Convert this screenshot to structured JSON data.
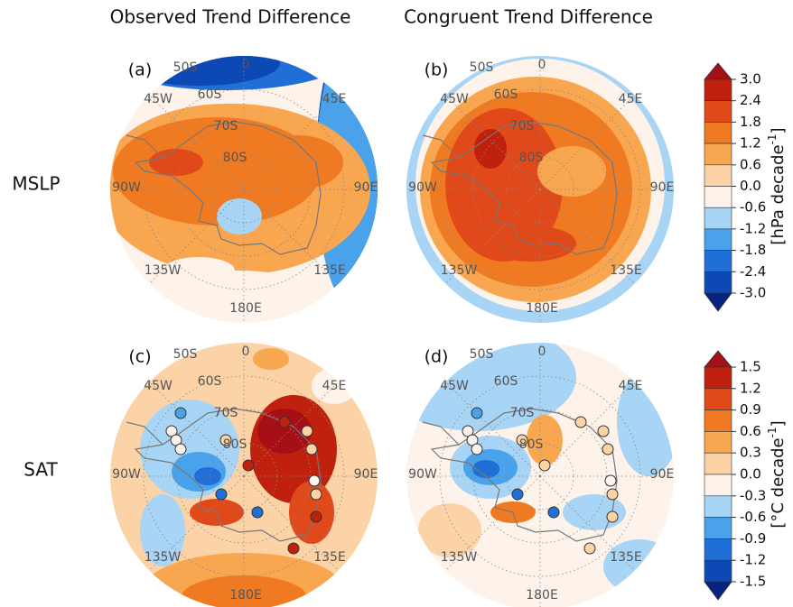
{
  "column_titles": [
    "Observed Trend Difference",
    "Congruent Trend Difference"
  ],
  "row_labels": [
    "MSLP",
    "SAT"
  ],
  "panels": [
    {
      "label": "(a)",
      "grid_labels": [
        "50S",
        "0",
        "45W",
        "60S",
        "45E",
        "70S",
        "80S",
        "90W",
        "90E",
        "135W",
        "135E",
        "180E"
      ]
    },
    {
      "label": "(b)",
      "grid_labels": [
        "50S",
        "0",
        "45W",
        "60S",
        "45E",
        "70S",
        "80S",
        "90W",
        "90E",
        "135W",
        "135E",
        "180E"
      ]
    },
    {
      "label": "(c)",
      "grid_labels": [
        "50S",
        "0",
        "45W",
        "60S",
        "45E",
        "70S",
        "80S",
        "90W",
        "90E",
        "135W",
        "135E",
        "180E"
      ]
    },
    {
      "label": "(d)",
      "grid_labels": [
        "50S",
        "0",
        "45W",
        "60S",
        "45E",
        "70S",
        "80S",
        "90W",
        "90E",
        "135W",
        "135E",
        "180E"
      ]
    }
  ],
  "colorbars": [
    {
      "ticks": [
        "3.0",
        "2.4",
        "1.8",
        "1.2",
        "0.6",
        "0.0",
        "-0.6",
        "-1.2",
        "-1.8",
        "-2.4",
        "-3.0"
      ],
      "unit": {
        "base": "[hPa decade",
        "sup": "-1",
        "end": "]"
      },
      "colors": [
        "#a50f15",
        "#c0200e",
        "#e04a1a",
        "#f07a22",
        "#f9a650",
        "#fbd3a6",
        "#fdf3ea",
        "#a8d4f5",
        "#4aa3ea",
        "#1f6fd6",
        "#0c49b5",
        "#06237f"
      ]
    },
    {
      "ticks": [
        "1.5",
        "1.2",
        "0.9",
        "0.6",
        "0.3",
        "0.0",
        "-0.3",
        "-0.6",
        "-0.9",
        "-1.2",
        "-1.5"
      ],
      "unit": {
        "base": "[°C decade",
        "sup": "-1",
        "end": "]"
      },
      "colors": [
        "#a50f15",
        "#c0200e",
        "#e04a1a",
        "#f07a22",
        "#f9a650",
        "#fbd3a6",
        "#fdf3ea",
        "#a8d4f5",
        "#4aa3ea",
        "#1f6fd6",
        "#0c49b5",
        "#06237f"
      ]
    }
  ]
}
